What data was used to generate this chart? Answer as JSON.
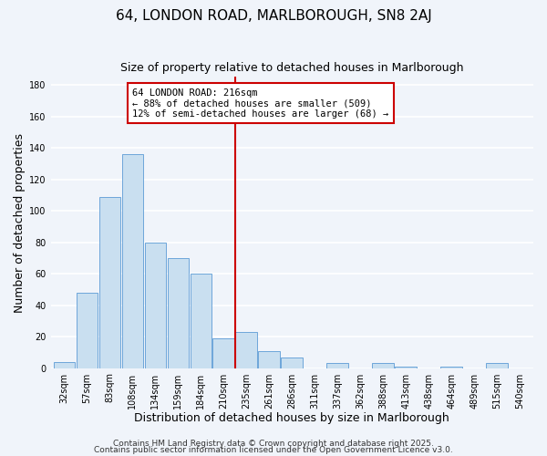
{
  "title": "64, LONDON ROAD, MARLBOROUGH, SN8 2AJ",
  "subtitle": "Size of property relative to detached houses in Marlborough",
  "xlabel": "Distribution of detached houses by size in Marlborough",
  "ylabel": "Number of detached properties",
  "bin_labels": [
    "32sqm",
    "57sqm",
    "83sqm",
    "108sqm",
    "134sqm",
    "159sqm",
    "184sqm",
    "210sqm",
    "235sqm",
    "261sqm",
    "286sqm",
    "311sqm",
    "337sqm",
    "362sqm",
    "388sqm",
    "413sqm",
    "438sqm",
    "464sqm",
    "489sqm",
    "515sqm",
    "540sqm"
  ],
  "bar_values": [
    4,
    48,
    109,
    136,
    80,
    70,
    60,
    19,
    23,
    11,
    7,
    0,
    3,
    0,
    3,
    1,
    0,
    1,
    0,
    3,
    0
  ],
  "bar_color": "#c9dff0",
  "bar_edgecolor": "#5b9bd5",
  "vline_x_index": 7.5,
  "vline_color": "#cc0000",
  "annotation_text": "64 LONDON ROAD: 216sqm\n← 88% of detached houses are smaller (509)\n12% of semi-detached houses are larger (68) →",
  "annotation_box_edgecolor": "#cc0000",
  "annotation_box_facecolor": "#ffffff",
  "ylim": [
    0,
    185
  ],
  "yticks": [
    0,
    20,
    40,
    60,
    80,
    100,
    120,
    140,
    160,
    180
  ],
  "footer1": "Contains HM Land Registry data © Crown copyright and database right 2025.",
  "footer2": "Contains public sector information licensed under the Open Government Licence v3.0.",
  "background_color": "#f0f4fa",
  "grid_color": "#ffffff",
  "title_fontsize": 11,
  "subtitle_fontsize": 9,
  "axis_label_fontsize": 9,
  "tick_fontsize": 7,
  "annotation_fontsize": 7.5,
  "footer_fontsize": 6.5
}
